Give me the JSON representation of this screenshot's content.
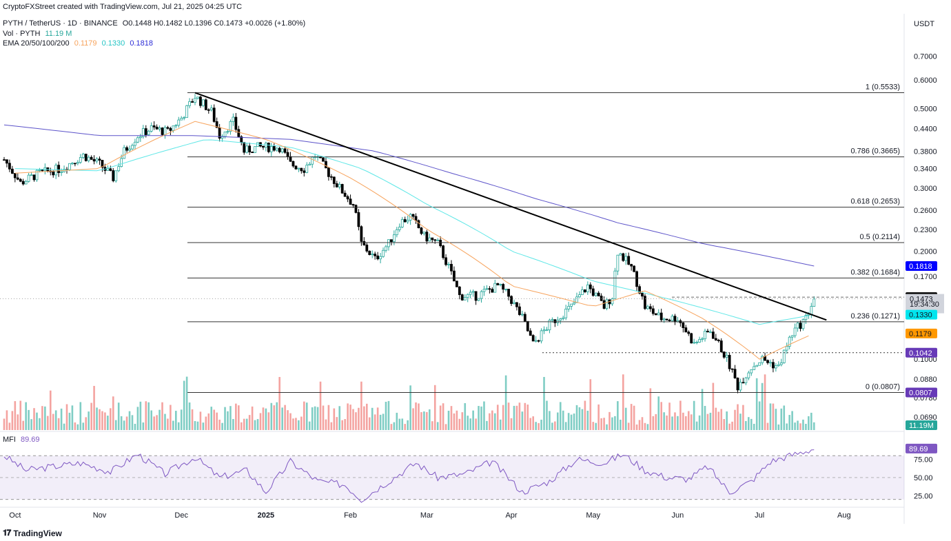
{
  "credit": "CryptoFXStreet created with TradingView.com, Jul 21, 2025 04:25 UTC",
  "legend": {
    "symbol": "PYTH / TetherUS · 1D · BINANCE",
    "ohlc": "O0.1448  H0.1482  L0.1396  C0.1473  +0.0026 (+1.80%)",
    "vol_label": "Vol · PYTH",
    "vol_value": "11.19 M",
    "ema_label": "EMA 20/50/100/200",
    "ema20": "0.1179",
    "ema50": "0.1330",
    "ema100": "0.1818",
    "mfi_label": "MFI",
    "mfi_value": "89.69"
  },
  "axis_unit": "USDT",
  "logo": "TradingView",
  "colors": {
    "up": "#26a69a",
    "down": "#000000",
    "vol_up": "#7fcdc4",
    "vol_down": "#f4a3a0",
    "ema20": "#f7a35c",
    "ema50": "#5ee7e7",
    "ema200": "#5b52c9",
    "mfi": "#7e57c2",
    "price_tag": "#000000",
    "ema50_tag": "#00e5ee",
    "ema200_tag": "#0000ff",
    "ema20_tag": "#ff9800",
    "fib_tag": "#673ab7"
  },
  "chart_data": {
    "type": "candlestick",
    "x_ticks": [
      "Oct",
      "Nov",
      "Dec",
      "2025",
      "Feb",
      "Mar",
      "Apr",
      "May",
      "Jun",
      "Jul",
      "Aug"
    ],
    "y_ticks": [
      "0.7000",
      "0.6000",
      "0.5000",
      "0.4400",
      "0.3800",
      "0.3400",
      "0.3000",
      "0.2600",
      "0.2300",
      "0.2000",
      "0.1700",
      "0.1000",
      "0.0880",
      "0.0780",
      "0.0690"
    ],
    "y_scale": "log",
    "ylim": [
      0.066,
      0.72
    ],
    "fib_levels": [
      {
        "label": "1 (0.5533)",
        "value": 0.5533
      },
      {
        "label": "0.786 (0.3665)",
        "value": 0.3665
      },
      {
        "label": "0.618 (0.2653)",
        "value": 0.2653
      },
      {
        "label": "0.5 (0.2114)",
        "value": 0.2114
      },
      {
        "label": "0.382 (0.1684)",
        "value": 0.1684
      },
      {
        "label": "0.236 (0.1271)",
        "value": 0.1271
      },
      {
        "label": "0 (0.0807)",
        "value": 0.0807
      }
    ],
    "price_tags": [
      {
        "label": "0.1818",
        "value": 0.1818,
        "kind": "ema200"
      },
      {
        "label": "0.1489",
        "value": 0.1489,
        "kind": "price"
      },
      {
        "label": "0.1473",
        "value": 0.1473,
        "kind": "current"
      },
      {
        "label": "19:34:30",
        "value": 0.1425,
        "kind": "countdown"
      },
      {
        "label": "0.1330",
        "value": 0.133,
        "kind": "ema50"
      },
      {
        "label": "0.1179",
        "value": 0.1179,
        "kind": "ema20"
      },
      {
        "label": "0.1042",
        "value": 0.1042,
        "kind": "level"
      },
      {
        "label": "0.0807",
        "value": 0.0807,
        "kind": "fib"
      },
      {
        "label": "11.19M",
        "value": 0.066,
        "kind": "volume"
      }
    ],
    "trendline": {
      "from": {
        "date": "2024-12-06",
        "price": 0.5533
      },
      "to": {
        "date": "2025-07-21",
        "price": 0.132
      }
    },
    "price_path": [
      [
        "2024-09-27",
        0.36
      ],
      [
        "2024-10-03",
        0.31
      ],
      [
        "2024-10-10",
        0.33
      ],
      [
        "2024-10-18",
        0.34
      ],
      [
        "2024-10-26",
        0.37
      ],
      [
        "2024-11-01",
        0.35
      ],
      [
        "2024-11-06",
        0.32
      ],
      [
        "2024-11-10",
        0.38
      ],
      [
        "2024-11-15",
        0.42
      ],
      [
        "2024-11-20",
        0.44
      ],
      [
        "2024-11-26",
        0.43
      ],
      [
        "2024-12-01",
        0.47
      ],
      [
        "2024-12-06",
        0.54
      ],
      [
        "2024-12-12",
        0.49
      ],
      [
        "2024-12-15",
        0.42
      ],
      [
        "2024-12-20",
        0.46
      ],
      [
        "2024-12-24",
        0.38
      ],
      [
        "2024-12-29",
        0.39
      ],
      [
        "2025-01-06",
        0.39
      ],
      [
        "2025-01-10",
        0.35
      ],
      [
        "2025-01-15",
        0.34
      ],
      [
        "2025-01-19",
        0.37
      ],
      [
        "2025-01-24",
        0.33
      ],
      [
        "2025-01-28",
        0.3
      ],
      [
        "2025-02-02",
        0.27
      ],
      [
        "2025-02-05",
        0.21
      ],
      [
        "2025-02-10",
        0.19
      ],
      [
        "2025-02-15",
        0.21
      ],
      [
        "2025-02-19",
        0.24
      ],
      [
        "2025-02-23",
        0.25
      ],
      [
        "2025-02-28",
        0.22
      ],
      [
        "2025-03-05",
        0.21
      ],
      [
        "2025-03-09",
        0.18
      ],
      [
        "2025-03-13",
        0.15
      ],
      [
        "2025-03-19",
        0.15
      ],
      [
        "2025-03-27",
        0.16
      ],
      [
        "2025-03-31",
        0.15
      ],
      [
        "2025-04-05",
        0.13
      ],
      [
        "2025-04-09",
        0.11
      ],
      [
        "2025-04-15",
        0.125
      ],
      [
        "2025-04-23",
        0.14
      ],
      [
        "2025-04-29",
        0.16
      ],
      [
        "2025-05-05",
        0.14
      ],
      [
        "2025-05-08",
        0.15
      ],
      [
        "2025-05-10",
        0.2
      ],
      [
        "2025-05-15",
        0.18
      ],
      [
        "2025-05-20",
        0.14
      ],
      [
        "2025-05-26",
        0.13
      ],
      [
        "2025-06-01",
        0.13
      ],
      [
        "2025-06-07",
        0.11
      ],
      [
        "2025-06-13",
        0.12
      ],
      [
        "2025-06-19",
        0.1
      ],
      [
        "2025-06-23",
        0.084
      ],
      [
        "2025-06-28",
        0.095
      ],
      [
        "2025-07-02",
        0.1
      ],
      [
        "2025-07-08",
        0.095
      ],
      [
        "2025-07-13",
        0.118
      ],
      [
        "2025-07-18",
        0.13
      ],
      [
        "2025-07-21",
        0.1473
      ]
    ],
    "ema20_path": [
      [
        "2024-10-01",
        0.33
      ],
      [
        "2024-11-01",
        0.34
      ],
      [
        "2024-12-06",
        0.46
      ],
      [
        "2025-01-01",
        0.41
      ],
      [
        "2025-02-01",
        0.32
      ],
      [
        "2025-03-01",
        0.23
      ],
      [
        "2025-04-01",
        0.16
      ],
      [
        "2025-05-01",
        0.14
      ],
      [
        "2025-05-20",
        0.155
      ],
      [
        "2025-06-10",
        0.13
      ],
      [
        "2025-07-01",
        0.1
      ],
      [
        "2025-07-21",
        0.1179
      ]
    ],
    "ema50_path": [
      [
        "2024-10-01",
        0.34
      ],
      [
        "2024-11-01",
        0.335
      ],
      [
        "2024-12-10",
        0.41
      ],
      [
        "2025-01-10",
        0.39
      ],
      [
        "2025-02-05",
        0.34
      ],
      [
        "2025-03-01",
        0.27
      ],
      [
        "2025-04-01",
        0.2
      ],
      [
        "2025-05-01",
        0.165
      ],
      [
        "2025-06-01",
        0.145
      ],
      [
        "2025-07-01",
        0.125
      ],
      [
        "2025-07-21",
        0.133
      ]
    ],
    "ema200_path": [
      [
        "2024-09-27",
        0.45
      ],
      [
        "2024-11-01",
        0.42
      ],
      [
        "2024-12-06",
        0.42
      ],
      [
        "2025-01-10",
        0.41
      ],
      [
        "2025-02-10",
        0.38
      ],
      [
        "2025-03-10",
        0.33
      ],
      [
        "2025-04-10",
        0.28
      ],
      [
        "2025-05-10",
        0.24
      ],
      [
        "2025-06-10",
        0.21
      ],
      [
        "2025-07-21",
        0.1818
      ]
    ],
    "mfi": {
      "label": "MFI",
      "value": 89.69,
      "ylim": [
        15,
        100
      ],
      "y_ticks": [
        "75.00",
        "50.00",
        "25.00"
      ],
      "bands": [
        20,
        80
      ],
      "path": [
        [
          "2024-09-27",
          80
        ],
        [
          "2024-10-05",
          60
        ],
        [
          "2024-10-15",
          65
        ],
        [
          "2024-10-25",
          70
        ],
        [
          "2024-11-05",
          58
        ],
        [
          "2024-11-15",
          82
        ],
        [
          "2024-11-25",
          55
        ],
        [
          "2024-12-06",
          78
        ],
        [
          "2024-12-15",
          50
        ],
        [
          "2024-12-25",
          60
        ],
        [
          "2025-01-01",
          30
        ],
        [
          "2025-01-10",
          72
        ],
        [
          "2025-01-20",
          45
        ],
        [
          "2025-01-30",
          40
        ],
        [
          "2025-02-05",
          20
        ],
        [
          "2025-02-15",
          45
        ],
        [
          "2025-02-25",
          70
        ],
        [
          "2025-03-05",
          50
        ],
        [
          "2025-03-15",
          55
        ],
        [
          "2025-03-25",
          72
        ],
        [
          "2025-04-05",
          30
        ],
        [
          "2025-04-15",
          45
        ],
        [
          "2025-04-25",
          75
        ],
        [
          "2025-05-05",
          70
        ],
        [
          "2025-05-12",
          82
        ],
        [
          "2025-05-20",
          60
        ],
        [
          "2025-05-28",
          50
        ],
        [
          "2025-06-05",
          48
        ],
        [
          "2025-06-12",
          65
        ],
        [
          "2025-06-20",
          30
        ],
        [
          "2025-06-28",
          45
        ],
        [
          "2025-07-05",
          72
        ],
        [
          "2025-07-12",
          80
        ],
        [
          "2025-07-21",
          89.69
        ]
      ]
    }
  }
}
